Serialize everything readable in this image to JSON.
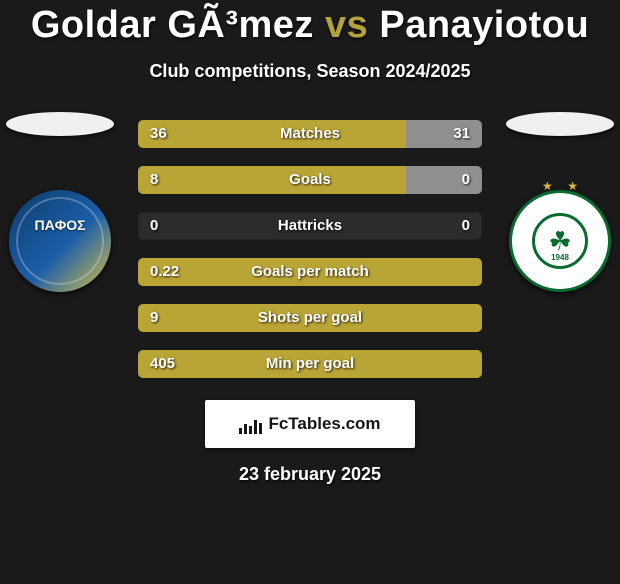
{
  "title_p1": "Goldar GÃ³mez",
  "title_vs": "vs",
  "title_p2": "Panayiotou",
  "subtitle": "Club competitions, Season 2024/2025",
  "date": "23 february 2025",
  "brand": "FcTables.com",
  "clubs": {
    "left_badge_text": "ΠAΦΟΣ",
    "right_year": "1948"
  },
  "colors": {
    "accent": "#b9a436",
    "neutral": "#8f8f8f",
    "bar_bg": "rgba(128,128,128,0.18)",
    "background": "#1a1a1a"
  },
  "stats": [
    {
      "label": "Matches",
      "left_val": "36",
      "right_val": "31",
      "left_pct": 78,
      "right_pct": 22,
      "left_color": "#b9a436",
      "right_color": "#8f8f8f"
    },
    {
      "label": "Goals",
      "left_val": "8",
      "right_val": "0",
      "left_pct": 78,
      "right_pct": 22,
      "left_color": "#b9a436",
      "right_color": "#8f8f8f"
    },
    {
      "label": "Hattricks",
      "left_val": "0",
      "right_val": "0",
      "left_pct": 0,
      "right_pct": 0,
      "left_color": "#b9a436",
      "right_color": "#8f8f8f"
    },
    {
      "label": "Goals per match",
      "left_val": "0.22",
      "right_val": "",
      "left_pct": 100,
      "right_pct": 0,
      "left_color": "#b9a436",
      "right_color": "#8f8f8f"
    },
    {
      "label": "Shots per goal",
      "left_val": "9",
      "right_val": "",
      "left_pct": 100,
      "right_pct": 0,
      "left_color": "#b9a436",
      "right_color": "#8f8f8f"
    },
    {
      "label": "Min per goal",
      "left_val": "405",
      "right_val": "",
      "left_pct": 100,
      "right_pct": 0,
      "left_color": "#b9a436",
      "right_color": "#8f8f8f"
    }
  ]
}
